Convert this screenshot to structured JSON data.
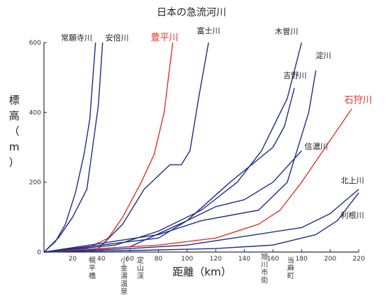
{
  "chart_data": {
    "type": "line",
    "title": "日本の急流河川",
    "xlabel": "距離（km）",
    "ylabel": "標高（m）",
    "xlim": [
      0,
      220
    ],
    "ylim": [
      0,
      600
    ],
    "x_ticks": [
      20,
      40,
      60,
      80,
      100,
      120,
      140,
      160,
      180,
      200,
      220
    ],
    "y_ticks": [
      0,
      200,
      400,
      600
    ],
    "grid": false,
    "colors": {
      "axis": "#333333",
      "blue": "#1f2f86",
      "red": "#e0372e"
    },
    "series": [
      {
        "name": "常願寺川",
        "color": "blue",
        "points": [
          [
            0,
            0
          ],
          [
            8,
            30
          ],
          [
            15,
            80
          ],
          [
            22,
            170
          ],
          [
            28,
            280
          ],
          [
            32,
            380
          ],
          [
            36,
            600
          ]
        ]
      },
      {
        "name": "安倍川",
        "color": "blue",
        "points": [
          [
            0,
            0
          ],
          [
            10,
            40
          ],
          [
            20,
            100
          ],
          [
            30,
            180
          ],
          [
            38,
            420
          ],
          [
            41,
            600
          ]
        ]
      },
      {
        "name": "豊平川",
        "color": "red",
        "points": [
          [
            0,
            0
          ],
          [
            30,
            10
          ],
          [
            45,
            40
          ],
          [
            55,
            100
          ],
          [
            68,
            200
          ],
          [
            77,
            280
          ],
          [
            84,
            400
          ],
          [
            90,
            600
          ]
        ]
      },
      {
        "name": "富士川",
        "color": "blue",
        "points": [
          [
            0,
            0
          ],
          [
            38,
            10
          ],
          [
            55,
            80
          ],
          [
            70,
            180
          ],
          [
            88,
            250
          ],
          [
            96,
            250
          ],
          [
            102,
            290
          ],
          [
            108,
            440
          ],
          [
            115,
            600
          ]
        ]
      },
      {
        "name": "木曽川",
        "color": "blue",
        "points": [
          [
            0,
            0
          ],
          [
            50,
            20
          ],
          [
            80,
            60
          ],
          [
            110,
            120
          ],
          [
            135,
            200
          ],
          [
            152,
            290
          ],
          [
            170,
            440
          ],
          [
            180,
            600
          ]
        ]
      },
      {
        "name": "吉野川",
        "color": "blue",
        "points": [
          [
            0,
            0
          ],
          [
            60,
            15
          ],
          [
            100,
            90
          ],
          [
            130,
            200
          ],
          [
            160,
            300
          ],
          [
            168,
            360
          ],
          [
            175,
            470
          ]
        ]
      },
      {
        "name": "淀川",
        "color": "blue",
        "points": [
          [
            0,
            0
          ],
          [
            80,
            50
          ],
          [
            110,
            90
          ],
          [
            150,
            120
          ],
          [
            170,
            200
          ],
          [
            185,
            400
          ],
          [
            190,
            520
          ]
        ]
      },
      {
        "name": "信濃川",
        "color": "blue",
        "points": [
          [
            0,
            0
          ],
          [
            40,
            20
          ],
          [
            80,
            40
          ],
          [
            100,
            90
          ],
          [
            120,
            130
          ],
          [
            140,
            150
          ],
          [
            160,
            200
          ],
          [
            180,
            290
          ]
        ]
      },
      {
        "name": "石狩川",
        "color": "red",
        "points": [
          [
            0,
            0
          ],
          [
            80,
            20
          ],
          [
            120,
            40
          ],
          [
            150,
            80
          ],
          [
            165,
            120
          ],
          [
            180,
            200
          ],
          [
            195,
            290
          ],
          [
            215,
            410
          ]
        ]
      },
      {
        "name": "北上川",
        "color": "blue",
        "points": [
          [
            0,
            0
          ],
          [
            60,
            10
          ],
          [
            100,
            20
          ],
          [
            140,
            45
          ],
          [
            180,
            70
          ],
          [
            200,
            110
          ],
          [
            220,
            180
          ]
        ]
      },
      {
        "name": "利根川",
        "color": "blue",
        "points": [
          [
            0,
            0
          ],
          [
            70,
            5
          ],
          [
            120,
            10
          ],
          [
            160,
            20
          ],
          [
            190,
            50
          ],
          [
            205,
            90
          ],
          [
            220,
            170
          ]
        ]
      }
    ],
    "annotations": [
      "幌平橋",
      "小金湯温泉",
      "定山渓",
      "旭川市街",
      "当麻町"
    ]
  }
}
